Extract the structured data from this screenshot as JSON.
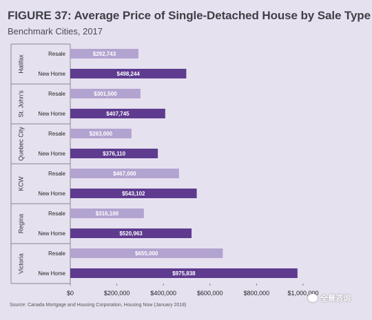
{
  "chart_data": {
    "type": "bar",
    "orientation": "horizontal",
    "title": "FIGURE 37: Average Price of Single-Detached House by Sale Type",
    "subtitle": "Benchmark Cities, 2017",
    "source": "Source: Canada Mortgage and Housing Corporation, Housing Now (January 2018)",
    "xlim": [
      0,
      1000000
    ],
    "x_ticks": [
      "$0",
      "$200,000",
      "$400,000",
      "$600,000",
      "$800,000",
      "$1,000,000"
    ],
    "x_tick_values": [
      0,
      200000,
      400000,
      600000,
      800000,
      1000000
    ],
    "grid": false,
    "legend": "none",
    "groups": [
      {
        "city": "Halifax",
        "bars": [
          {
            "sale_type": "Resale",
            "value": 292743,
            "label": "$292,743"
          },
          {
            "sale_type": "New Home",
            "value": 498244,
            "label": "$498,244"
          }
        ]
      },
      {
        "city": "St. John's",
        "bars": [
          {
            "sale_type": "Resale",
            "value": 301500,
            "label": "$301,500"
          },
          {
            "sale_type": "New Home",
            "value": 407745,
            "label": "$407,745"
          }
        ]
      },
      {
        "city": "Quebec City",
        "bars": [
          {
            "sale_type": "Resale",
            "value": 263000,
            "label": "$263,000"
          },
          {
            "sale_type": "New Home",
            "value": 376110,
            "label": "$376,110"
          }
        ]
      },
      {
        "city": "KCW",
        "bars": [
          {
            "sale_type": "Resale",
            "value": 467000,
            "label": "$467,000"
          },
          {
            "sale_type": "New Home",
            "value": 543102,
            "label": "$543,102"
          }
        ]
      },
      {
        "city": "Regina",
        "bars": [
          {
            "sale_type": "Resale",
            "value": 316100,
            "label": "$316,100"
          },
          {
            "sale_type": "New Home",
            "value": 520963,
            "label": "$520,963"
          }
        ]
      },
      {
        "city": "Victoria",
        "bars": [
          {
            "sale_type": "Resale",
            "value": 655000,
            "label": "$655,000"
          },
          {
            "sale_type": "New Home",
            "value": 975838,
            "label": "$975,838"
          }
        ]
      }
    ],
    "colors": {
      "Resale": "#b3a3d0",
      "New Home": "#5e3b8f",
      "axis": "#888888"
    }
  },
  "watermark": {
    "text": "全景咨询"
  }
}
